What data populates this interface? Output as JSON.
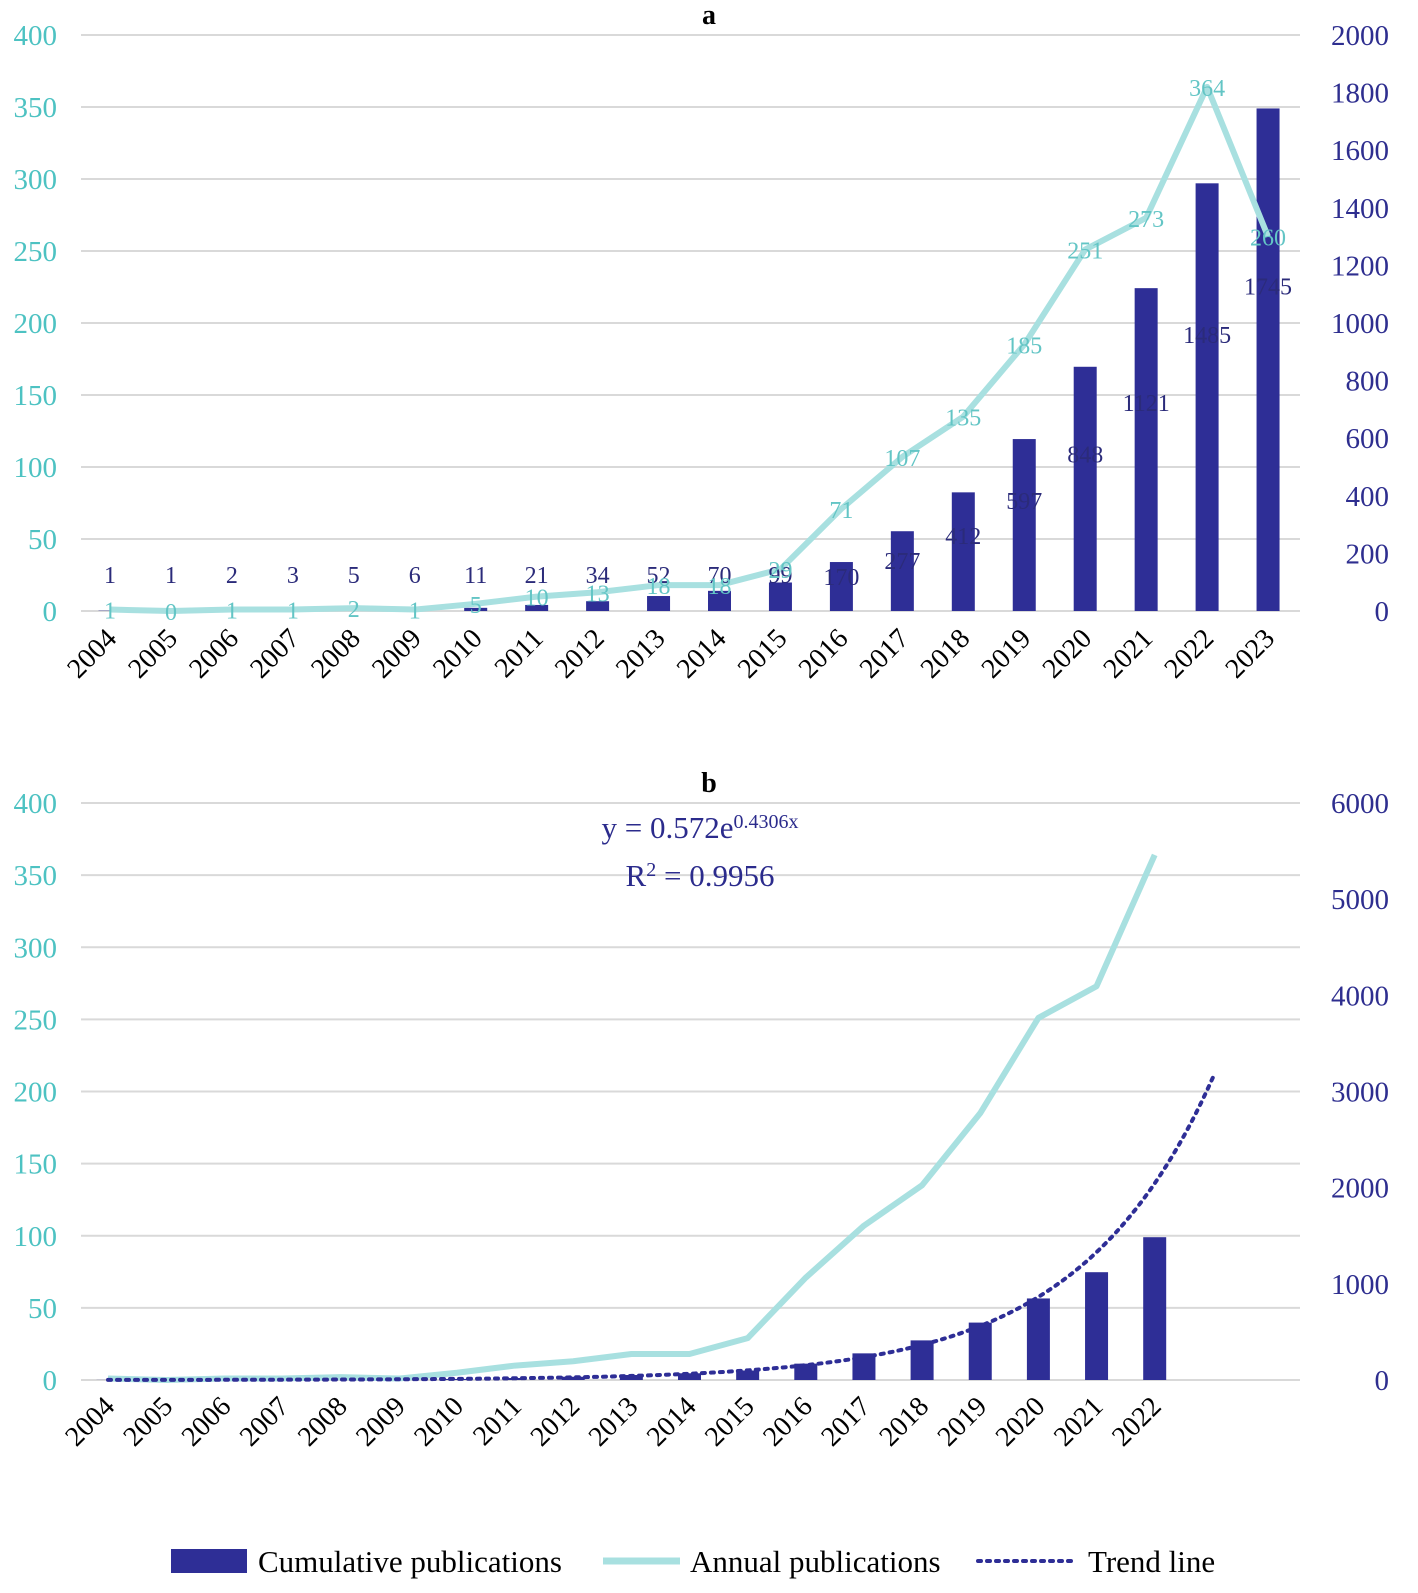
{
  "colors": {
    "cumulative": "#2e2e96",
    "annual": "#a8e0e0",
    "trend": "#2e2e96",
    "left_axis": "#4dc2c2",
    "right_axis": "#2e2e8f",
    "grid": "#d9d9d9"
  },
  "legend": {
    "cumulative": "Cumulative publications",
    "annual": "Annual publications",
    "trend": "Trend line"
  },
  "chart_data": [
    {
      "panel": "a",
      "type": "bar+line",
      "categories": [
        "2004",
        "2005",
        "2006",
        "2007",
        "2008",
        "2009",
        "2010",
        "2011",
        "2012",
        "2013",
        "2014",
        "2015",
        "2016",
        "2017",
        "2018",
        "2019",
        "2020",
        "2021",
        "2022",
        "2023"
      ],
      "left_axis": {
        "min": 0,
        "max": 400,
        "ticks": [
          "0",
          "50",
          "100",
          "150",
          "200",
          "250",
          "300",
          "350",
          "400"
        ]
      },
      "right_axis": {
        "min": 0,
        "max": 2000,
        "ticks": [
          "0",
          "200",
          "400",
          "600",
          "800",
          "1000",
          "1200",
          "1400",
          "1600",
          "1800",
          "2000"
        ]
      },
      "series": [
        {
          "name": "Cumulative publications",
          "kind": "bar",
          "axis": "right",
          "values": [
            1,
            1,
            2,
            3,
            5,
            6,
            11,
            21,
            34,
            52,
            70,
            99,
            170,
            277,
            412,
            597,
            848,
            1121,
            1485,
            1745
          ],
          "labels": [
            "1",
            "1",
            "2",
            "3",
            "5",
            "6",
            "11",
            "21",
            "34",
            "52",
            "70",
            "99",
            "170",
            "277",
            "412",
            "597",
            "848",
            "1121",
            "1485",
            "1745"
          ]
        },
        {
          "name": "Annual publications",
          "kind": "line",
          "axis": "left",
          "values": [
            1,
            0,
            1,
            1,
            2,
            1,
            5,
            10,
            13,
            18,
            18,
            29,
            71,
            107,
            135,
            185,
            251,
            273,
            364,
            260
          ],
          "labels": [
            "1",
            "0",
            "1",
            "1",
            "2",
            "1",
            "5",
            "10",
            "13",
            "18",
            "18",
            "29",
            "71",
            "107",
            "135",
            "185",
            "251",
            "273",
            "364",
            "260"
          ]
        }
      ]
    },
    {
      "panel": "b",
      "type": "bar+line+trend",
      "categories": [
        "2004",
        "2005",
        "2006",
        "2007",
        "2008",
        "2009",
        "2010",
        "2011",
        "2012",
        "2013",
        "2014",
        "2015",
        "2016",
        "2017",
        "2018",
        "2019",
        "2020",
        "2021",
        "2022"
      ],
      "left_axis": {
        "min": 0,
        "max": 400,
        "ticks": [
          "0",
          "50",
          "100",
          "150",
          "200",
          "250",
          "300",
          "350",
          "400"
        ]
      },
      "right_axis": {
        "min": 0,
        "max": 6000,
        "ticks": [
          "0",
          "1000",
          "2000",
          "3000",
          "4000",
          "5000",
          "6000"
        ]
      },
      "series": [
        {
          "name": "Cumulative publications",
          "kind": "bar",
          "axis": "right",
          "values": [
            1,
            1,
            2,
            3,
            5,
            6,
            11,
            21,
            34,
            52,
            70,
            99,
            170,
            277,
            412,
            597,
            848,
            1121,
            1485
          ]
        },
        {
          "name": "Annual publications",
          "kind": "line",
          "axis": "left",
          "values": [
            1,
            0,
            1,
            1,
            2,
            1,
            5,
            10,
            13,
            18,
            18,
            29,
            71,
            107,
            135,
            185,
            251,
            273,
            364
          ]
        },
        {
          "name": "Trend line",
          "kind": "trend",
          "axis": "right",
          "coef": 0.572,
          "exp": 0.4306,
          "x_end": 20
        }
      ],
      "equation": {
        "prefix": "y = 0.572e",
        "exponent": "0.4306x",
        "r2_prefix": "R",
        "r2_sup": "2",
        "r2_value": " = 0.9956"
      }
    }
  ]
}
